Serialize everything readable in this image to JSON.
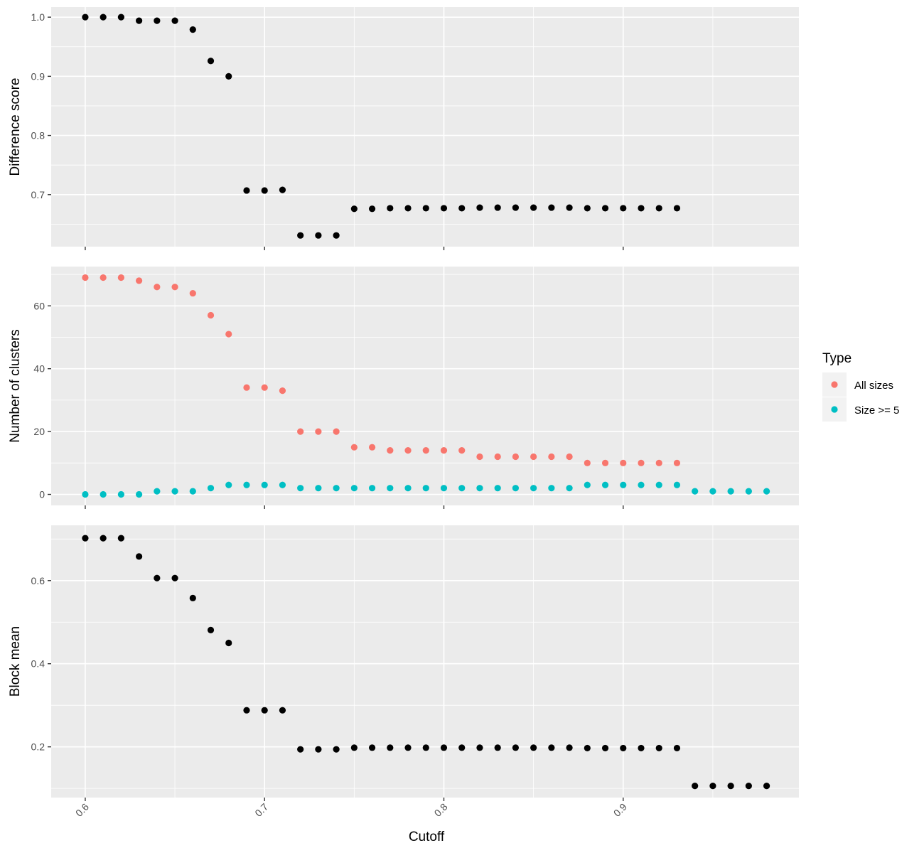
{
  "chart_data": {
    "type": "scatter",
    "xlabel": "Cutoff",
    "x_ticks": [
      0.6,
      0.7,
      0.8,
      0.9
    ],
    "x_tick_labels": [
      "0.6",
      "0.7",
      "0.8",
      "0.9"
    ],
    "xlim": [
      0.581,
      0.998
    ],
    "grid": true,
    "legend": {
      "title": "Type",
      "placement": "right",
      "entries": [
        {
          "label": "All sizes",
          "color": "#F8766D"
        },
        {
          "label": "Size >= 5",
          "color": "#00BFC4"
        }
      ]
    },
    "panels": [
      {
        "ylabel": "Difference score",
        "ylim": [
          0.612,
          1.017
        ],
        "y_ticks": [
          0.7,
          0.8,
          0.9,
          1.0
        ],
        "y_tick_labels": [
          "0.7",
          "0.8",
          "0.9",
          "1.0"
        ],
        "series": [
          {
            "color": "#000000",
            "x": [
              0.6,
              0.61,
              0.62,
              0.63,
              0.64,
              0.65,
              0.66,
              0.67,
              0.68,
              0.69,
              0.7,
              0.71,
              0.72,
              0.73,
              0.74,
              0.75,
              0.76,
              0.77,
              0.78,
              0.79,
              0.8,
              0.81,
              0.82,
              0.83,
              0.84,
              0.85,
              0.86,
              0.87,
              0.88,
              0.89,
              0.9,
              0.91,
              0.92,
              0.93
            ],
            "y": [
              1.0,
              1.0,
              1.0,
              0.994,
              0.994,
              0.994,
              0.979,
              0.926,
              0.9,
              0.707,
              0.707,
              0.708,
              0.631,
              0.631,
              0.631,
              0.676,
              0.676,
              0.677,
              0.677,
              0.677,
              0.677,
              0.677,
              0.678,
              0.678,
              0.678,
              0.678,
              0.678,
              0.678,
              0.677,
              0.677,
              0.677,
              0.677,
              0.677,
              0.677
            ]
          }
        ]
      },
      {
        "ylabel": "Number of clusters",
        "ylim": [
          -3.5,
          72.5
        ],
        "y_ticks": [
          0,
          20,
          40,
          60
        ],
        "y_tick_labels": [
          "0",
          "20",
          "40",
          "60"
        ],
        "series": [
          {
            "name": "All sizes",
            "color": "#F8766D",
            "x": [
              0.6,
              0.61,
              0.62,
              0.63,
              0.64,
              0.65,
              0.66,
              0.67,
              0.68,
              0.69,
              0.7,
              0.71,
              0.72,
              0.73,
              0.74,
              0.75,
              0.76,
              0.77,
              0.78,
              0.79,
              0.8,
              0.81,
              0.82,
              0.83,
              0.84,
              0.85,
              0.86,
              0.87,
              0.88,
              0.89,
              0.9,
              0.91,
              0.92,
              0.93
            ],
            "y": [
              69,
              69,
              69,
              68,
              66,
              66,
              64,
              57,
              51,
              34,
              34,
              33,
              20,
              20,
              20,
              15,
              15,
              14,
              14,
              14,
              14,
              14,
              12,
              12,
              12,
              12,
              12,
              12,
              10,
              10,
              10,
              10,
              10,
              10
            ]
          },
          {
            "name": "Size >= 5",
            "color": "#00BFC4",
            "x": [
              0.6,
              0.61,
              0.62,
              0.63,
              0.64,
              0.65,
              0.66,
              0.67,
              0.68,
              0.69,
              0.7,
              0.71,
              0.72,
              0.73,
              0.74,
              0.75,
              0.76,
              0.77,
              0.78,
              0.79,
              0.8,
              0.81,
              0.82,
              0.83,
              0.84,
              0.85,
              0.86,
              0.87,
              0.88,
              0.89,
              0.9,
              0.91,
              0.92,
              0.93,
              0.94,
              0.95,
              0.96,
              0.97,
              0.98
            ],
            "y": [
              0,
              0,
              0,
              0,
              1,
              1,
              1,
              2,
              3,
              3,
              3,
              3,
              2,
              2,
              2,
              2,
              2,
              2,
              2,
              2,
              2,
              2,
              2,
              2,
              2,
              2,
              2,
              2,
              3,
              3,
              3,
              3,
              3,
              3,
              1,
              1,
              1,
              1,
              1
            ]
          }
        ]
      },
      {
        "ylabel": "Block mean",
        "ylim": [
          0.078,
          0.733
        ],
        "y_ticks": [
          0.2,
          0.4,
          0.6
        ],
        "y_tick_labels": [
          "0.2",
          "0.4",
          "0.6"
        ],
        "series": [
          {
            "color": "#000000",
            "x": [
              0.6,
              0.61,
              0.62,
              0.63,
              0.64,
              0.65,
              0.66,
              0.67,
              0.68,
              0.69,
              0.7,
              0.71,
              0.72,
              0.73,
              0.74,
              0.75,
              0.76,
              0.77,
              0.78,
              0.79,
              0.8,
              0.81,
              0.82,
              0.83,
              0.84,
              0.85,
              0.86,
              0.87,
              0.88,
              0.89,
              0.9,
              0.91,
              0.92,
              0.93,
              0.94,
              0.95,
              0.96,
              0.97,
              0.98
            ],
            "y": [
              0.702,
              0.702,
              0.702,
              0.658,
              0.606,
              0.606,
              0.558,
              0.481,
              0.45,
              0.288,
              0.288,
              0.288,
              0.194,
              0.194,
              0.194,
              0.198,
              0.198,
              0.198,
              0.198,
              0.198,
              0.198,
              0.198,
              0.198,
              0.198,
              0.198,
              0.198,
              0.198,
              0.198,
              0.197,
              0.197,
              0.197,
              0.197,
              0.197,
              0.197,
              0.106,
              0.106,
              0.106,
              0.106,
              0.106
            ]
          }
        ]
      }
    ]
  }
}
